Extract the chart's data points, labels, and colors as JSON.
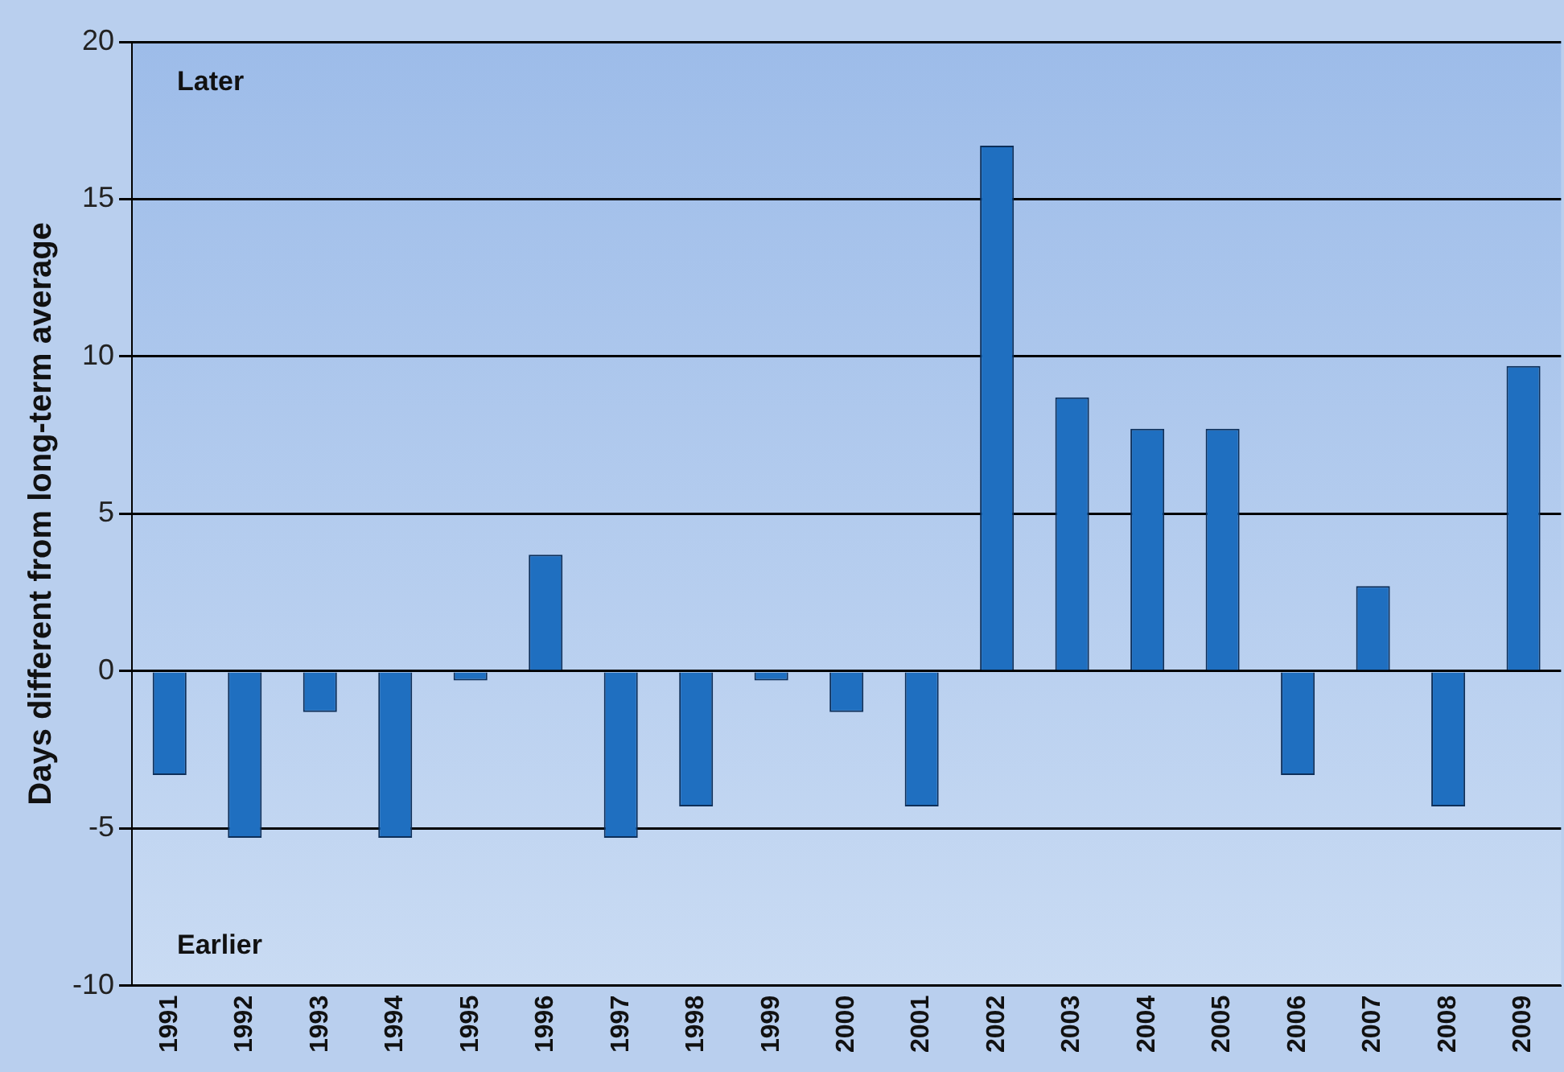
{
  "chart_data": {
    "type": "bar",
    "ylabel": "Days different from long-term average",
    "categories": [
      "1991",
      "1992",
      "1993",
      "1994",
      "1995",
      "1996",
      "1997",
      "1998",
      "1999",
      "2000",
      "2001",
      "2002",
      "2003",
      "2004",
      "2005",
      "2006",
      "2007",
      "2008",
      "2009"
    ],
    "values": [
      -3.3,
      -5.3,
      -1.3,
      -5.3,
      -0.3,
      3.7,
      -5.3,
      -4.3,
      -0.3,
      -1.3,
      -4.3,
      16.7,
      8.7,
      7.7,
      7.7,
      -3.3,
      2.7,
      -4.3,
      9.7
    ],
    "color": "#1f6fc0",
    "ylim": [
      -10,
      20
    ],
    "yticks": [
      -10,
      -5,
      0,
      5,
      10,
      15,
      20
    ],
    "grid": "y",
    "legend": false,
    "annotations": [
      "Later",
      "Earlier"
    ]
  }
}
